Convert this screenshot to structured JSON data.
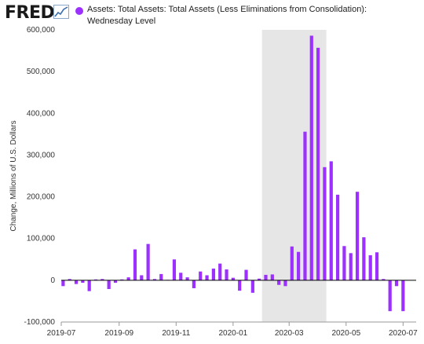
{
  "header": {
    "logo_text": "FRED",
    "logo_icon": "chart-line-icon",
    "legend_label_line1": "Assets: Total Assets: Total Assets (Less Eliminations from Consolidation):",
    "legend_label_line2": "Wednesday Level"
  },
  "colors": {
    "series": "#9b30ff",
    "recession": "#e6e6e6",
    "zero_line": "#000000",
    "axis": "#999999"
  },
  "chart_data": {
    "type": "bar",
    "title": "",
    "xlabel": "",
    "ylabel": "Change, Millions of U.S. Dollars",
    "ylim": [
      -100000,
      600000
    ],
    "yticks": [
      -100000,
      0,
      100000,
      200000,
      300000,
      400000,
      500000,
      600000
    ],
    "ytick_labels": [
      "-100,000",
      "0",
      "100,000",
      "200,000",
      "300,000",
      "400,000",
      "500,000",
      "600,000"
    ],
    "xlim": [
      "2019-07-01",
      "2020-07-15"
    ],
    "xticks": [
      "2019-07-01",
      "2019-09-01",
      "2019-11-01",
      "2020-01-01",
      "2020-03-01",
      "2020-05-01",
      "2020-07-01"
    ],
    "xtick_labels": [
      "2019-07",
      "2019-09",
      "2019-11",
      "2020-01",
      "2020-03",
      "2020-05",
      "2020-07"
    ],
    "recession": {
      "start": "2020-02-01",
      "end": "2020-04-30"
    },
    "legend_position": "top",
    "grid": false,
    "series": [
      {
        "name": "Assets: Total Assets: Total Assets (Less Eliminations from Consolidation): Wednesday Level",
        "points": [
          {
            "x": "2019-07-03",
            "y": -14000
          },
          {
            "x": "2019-07-10",
            "y": 3000
          },
          {
            "x": "2019-07-17",
            "y": -9000
          },
          {
            "x": "2019-07-24",
            "y": -6000
          },
          {
            "x": "2019-07-31",
            "y": -26000
          },
          {
            "x": "2019-08-07",
            "y": 2000
          },
          {
            "x": "2019-08-14",
            "y": 3000
          },
          {
            "x": "2019-08-21",
            "y": -21000
          },
          {
            "x": "2019-08-28",
            "y": -6000
          },
          {
            "x": "2019-09-04",
            "y": 2000
          },
          {
            "x": "2019-09-11",
            "y": 7000
          },
          {
            "x": "2019-09-18",
            "y": 74000
          },
          {
            "x": "2019-09-25",
            "y": 12000
          },
          {
            "x": "2019-10-02",
            "y": 87000
          },
          {
            "x": "2019-10-09",
            "y": 3000
          },
          {
            "x": "2019-10-16",
            "y": 15000
          },
          {
            "x": "2019-10-23",
            "y": 1000
          },
          {
            "x": "2019-10-30",
            "y": 50000
          },
          {
            "x": "2019-11-06",
            "y": 18000
          },
          {
            "x": "2019-11-13",
            "y": 7000
          },
          {
            "x": "2019-11-20",
            "y": -19000
          },
          {
            "x": "2019-11-27",
            "y": 21000
          },
          {
            "x": "2019-12-04",
            "y": 12000
          },
          {
            "x": "2019-12-11",
            "y": 28000
          },
          {
            "x": "2019-12-18",
            "y": 40000
          },
          {
            "x": "2019-12-25",
            "y": 26000
          },
          {
            "x": "2020-01-01",
            "y": 6000
          },
          {
            "x": "2020-01-08",
            "y": -25000
          },
          {
            "x": "2020-01-15",
            "y": 25000
          },
          {
            "x": "2020-01-22",
            "y": -30000
          },
          {
            "x": "2020-01-29",
            "y": 4000
          },
          {
            "x": "2020-02-05",
            "y": 13000
          },
          {
            "x": "2020-02-12",
            "y": 14000
          },
          {
            "x": "2020-02-19",
            "y": -11000
          },
          {
            "x": "2020-02-26",
            "y": -14000
          },
          {
            "x": "2020-03-04",
            "y": 81000
          },
          {
            "x": "2020-03-11",
            "y": 68000
          },
          {
            "x": "2020-03-18",
            "y": 356000
          },
          {
            "x": "2020-03-25",
            "y": 586000
          },
          {
            "x": "2020-04-01",
            "y": 557000
          },
          {
            "x": "2020-04-08",
            "y": 271000
          },
          {
            "x": "2020-04-15",
            "y": 285000
          },
          {
            "x": "2020-04-22",
            "y": 205000
          },
          {
            "x": "2020-04-29",
            "y": 82000
          },
          {
            "x": "2020-05-06",
            "y": 65000
          },
          {
            "x": "2020-05-13",
            "y": 212000
          },
          {
            "x": "2020-05-20",
            "y": 103000
          },
          {
            "x": "2020-05-27",
            "y": 60000
          },
          {
            "x": "2020-06-03",
            "y": 67000
          },
          {
            "x": "2020-06-10",
            "y": 3000
          },
          {
            "x": "2020-06-17",
            "y": -74000
          },
          {
            "x": "2020-06-24",
            "y": -14000
          },
          {
            "x": "2020-07-01",
            "y": -74000
          }
        ]
      }
    ]
  }
}
